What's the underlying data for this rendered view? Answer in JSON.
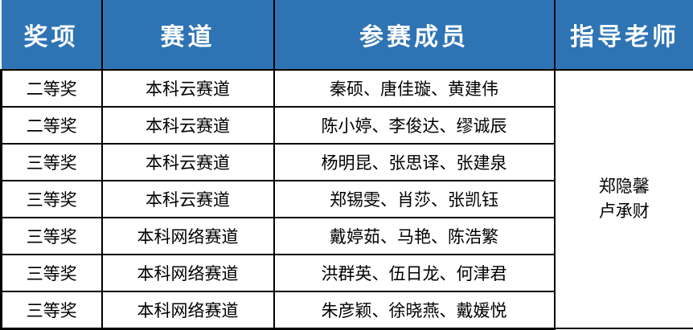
{
  "chart_data": {
    "type": "table",
    "columns": [
      "奖项",
      "赛道",
      "参赛成员",
      "指导老师"
    ],
    "rows": [
      {
        "award": "二等奖",
        "track": "本科云赛道",
        "members": "秦硕、唐佳璇、黄建伟"
      },
      {
        "award": "二等奖",
        "track": "本科云赛道",
        "members": "陈小婷、李俊达、缪诚辰"
      },
      {
        "award": "三等奖",
        "track": "本科云赛道",
        "members": "杨明昆、张思译、张建泉"
      },
      {
        "award": "三等奖",
        "track": "本科云赛道",
        "members": "郑锡雯、肖莎、张凯钰"
      },
      {
        "award": "三等奖",
        "track": "本科网络赛道",
        "members": "戴婷茹、马艳、陈浩繁"
      },
      {
        "award": "三等奖",
        "track": "本科网络赛道",
        "members": "洪群英、伍日龙、何津君"
      },
      {
        "award": "三等奖",
        "track": "本科网络赛道",
        "members": "朱彦颖、徐晓燕、戴媛悦"
      }
    ],
    "advisor_merged": {
      "rowspan": 7,
      "names": [
        "郑隐馨",
        "卢承财"
      ]
    },
    "layout_hints": {
      "header_position": "top",
      "grid": "on"
    }
  },
  "colors": {
    "header_bg": "#2E74B5",
    "header_text": "#FFFFFF",
    "border": "#000000",
    "body_text": "#000000",
    "body_bg": "#FFFFFF"
  }
}
